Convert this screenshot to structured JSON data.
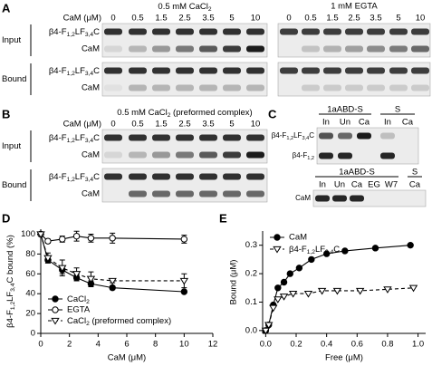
{
  "panel_a": {
    "letter": "A",
    "axis_label": "CaM (μM)",
    "blots": [
      {
        "title": [
          "0.5 mM CaCl",
          "2"
        ],
        "lanes": [
          0,
          0.5,
          1.5,
          2.5,
          3.5,
          5,
          10
        ]
      },
      {
        "title": "1 mM EGTA",
        "lanes": [
          0,
          0.5,
          1.5,
          2.5,
          3.5,
          5,
          10
        ]
      }
    ],
    "groups": [
      {
        "name": "Input",
        "rows": [
          [
            "β4-F",
            "1,2",
            "LF",
            "3,4",
            "C"
          ],
          "CaM"
        ]
      },
      {
        "name": "Bound",
        "rows": [
          [
            "β4-F",
            "1,2",
            "LF",
            "3,4",
            "C"
          ],
          "CaM"
        ]
      }
    ]
  },
  "panel_b": {
    "letter": "B",
    "axis_label": "CaM (μM)",
    "blots": [
      {
        "title": [
          "0.5 mM CaCl",
          "2",
          " (preformed complex)"
        ],
        "lanes": [
          0,
          0.5,
          1.5,
          2.5,
          3.5,
          5,
          10
        ]
      }
    ],
    "groups": [
      {
        "name": "Input",
        "rows": [
          [
            "β4-F",
            "1,2",
            "LF",
            "3,4",
            "C"
          ],
          "CaM"
        ]
      },
      {
        "name": "Bound",
        "rows": [
          [
            "β4-F",
            "1,2",
            "LF",
            "3,4",
            "C"
          ],
          "CaM"
        ]
      }
    ]
  },
  "panel_c": {
    "letter": "C",
    "top": {
      "groups": [
        {
          "name": "1aABD-S",
          "lanes": [
            "In",
            "Un",
            "Ca"
          ]
        },
        {
          "name": "S",
          "lanes": [
            "In",
            "Ca"
          ]
        }
      ],
      "rows": [
        [
          "β4-F",
          "1,2",
          "LF",
          "3,4",
          "C"
        ],
        [
          "β4-F",
          "1,2"
        ]
      ]
    },
    "bottom": {
      "groups": [
        {
          "name": "1aABD-S",
          "lanes": [
            "In",
            "Un",
            "Ca",
            "EG",
            "W7"
          ]
        },
        {
          "name": "S",
          "lanes": [
            "Ca"
          ]
        }
      ],
      "rows": [
        "CaM"
      ]
    }
  },
  "chart_data": [
    {
      "type": "line",
      "letter": "D",
      "xlabel": "CaM (μM)",
      "ylabel": [
        "β4-F",
        "1,2",
        "LF",
        "3,4",
        "C bound (%)"
      ],
      "xlim": [
        0,
        12
      ],
      "xticks": [
        0,
        2,
        4,
        6,
        8,
        10,
        12
      ],
      "ylim": [
        0,
        105
      ],
      "yticks": [
        0,
        20,
        40,
        60,
        80,
        100
      ],
      "legend": "lower left",
      "series": [
        {
          "name": [
            "CaCl",
            "2"
          ],
          "color": "#000000",
          "marker": "circle",
          "filled": true,
          "line": "solid",
          "x": [
            0,
            0.5,
            1.5,
            2.5,
            3.5,
            5,
            10
          ],
          "values": [
            100,
            74,
            64,
            56,
            50,
            46,
            42
          ],
          "errors": [
            0,
            3,
            4,
            3,
            3,
            2,
            1
          ]
        },
        {
          "name": "EGTA",
          "color": "#000000",
          "marker": "circle",
          "filled": false,
          "line": "solid",
          "x": [
            0,
            0.5,
            1.5,
            2.5,
            3.5,
            5,
            10
          ],
          "values": [
            100,
            93,
            95,
            98,
            96,
            96,
            95
          ],
          "errors": [
            0,
            2,
            3,
            5,
            4,
            5,
            4
          ]
        },
        {
          "name": [
            "CaCl",
            "2",
            " (preformed complex)"
          ],
          "color": "#000000",
          "marker": "triangle",
          "filled": false,
          "line": "dashed",
          "x": [
            0,
            0.5,
            1.5,
            2.5,
            3.5,
            5,
            10
          ],
          "values": [
            100,
            76,
            66,
            60,
            55,
            53,
            53
          ],
          "errors": [
            0,
            5,
            8,
            6,
            7,
            2,
            7
          ]
        }
      ]
    },
    {
      "type": "scatter",
      "letter": "E",
      "xlabel": "Free (μM)",
      "ylabel": "Bound (μM)",
      "xlim": [
        -0.02,
        1.05
      ],
      "xticks": [
        {
          "value": 0,
          "label": "0.0"
        },
        0.2,
        0.4,
        0.6,
        0.8,
        {
          "value": 1,
          "label": "1.0"
        }
      ],
      "ylim": [
        -0.01,
        0.35
      ],
      "yticks": [
        {
          "value": 0,
          "label": "0.0"
        },
        0.1,
        0.2,
        0.3
      ],
      "legend": "upper left",
      "series": [
        {
          "name": "CaM",
          "color": "#000000",
          "marker": "circle",
          "filled": true,
          "line": "solid",
          "x": [
            0,
            0.02,
            0.05,
            0.08,
            0.12,
            0.16,
            0.22,
            0.3,
            0.4,
            0.52,
            0.72,
            0.95
          ],
          "values": [
            0,
            0.02,
            0.09,
            0.15,
            0.17,
            0.2,
            0.22,
            0.25,
            0.27,
            0.28,
            0.29,
            0.3
          ]
        },
        {
          "name": [
            "β4-F",
            "1,2",
            "LF",
            "3,4",
            "C"
          ],
          "color": "#000000",
          "marker": "triangle",
          "filled": false,
          "line": "dashed",
          "x": [
            0,
            0.02,
            0.05,
            0.08,
            0.12,
            0.18,
            0.28,
            0.37,
            0.47,
            0.62,
            0.8,
            0.97
          ],
          "values": [
            0,
            0.02,
            0.08,
            0.11,
            0.12,
            0.13,
            0.13,
            0.14,
            0.14,
            0.14,
            0.145,
            0.15
          ]
        }
      ]
    }
  ]
}
